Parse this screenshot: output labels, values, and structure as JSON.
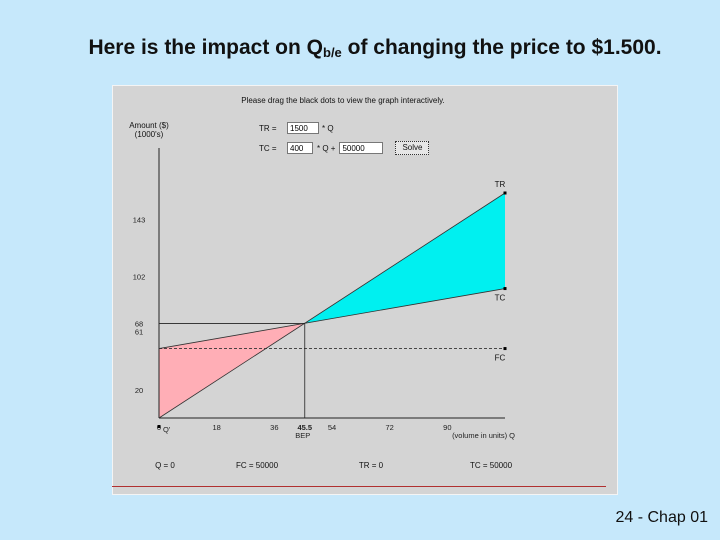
{
  "slide": {
    "title_before": "Here is the impact on Q",
    "title_sub": "b/e",
    "title_after": " of changing the price to $1.500.",
    "footer": "24 - Chap 01"
  },
  "applet": {
    "instruction": "Please drag the black dots to view the graph interactively.",
    "tr_label": "TR =",
    "tr_value": "1500",
    "tr_suffix": "* Q",
    "tc_label": "TC =",
    "tc_value": "400",
    "tc_mid": "* Q +",
    "tc_fixed_value": "50000",
    "solve_label": "Solve",
    "bottom_labels": [
      "Q = 0",
      "FC = 50000",
      "TR = 0",
      "TC = 50000"
    ]
  },
  "colors": {
    "background": "#c6e8fb",
    "panel": "#d4d4d4",
    "profit_fill": "#00f0f0",
    "loss_fill": "#ffaeb6"
  },
  "chart_data": {
    "type": "line",
    "ylabel": "Amount ($)\n(1000's)",
    "xlabel": "(volume in units) Q",
    "xlim": [
      0,
      108
    ],
    "ylim": [
      0,
      180
    ],
    "x_ticks": [
      "0",
      "18",
      "36",
      "45.5",
      "54",
      "72",
      "90"
    ],
    "x_tick_values": [
      0,
      18,
      36,
      45.5,
      54,
      72,
      90
    ],
    "x_tick_sublabel": "BEP",
    "y_ticks": [
      "20",
      "61",
      "68",
      "102",
      "143"
    ],
    "y_tick_values": [
      20,
      61,
      68,
      102,
      143
    ],
    "origin_label": "Q'",
    "series": [
      {
        "name": "TR",
        "x": [
          0,
          108
        ],
        "y": [
          0,
          162
        ]
      },
      {
        "name": "TC",
        "x": [
          0,
          108
        ],
        "y": [
          50,
          93.2
        ]
      },
      {
        "name": "FC",
        "x": [
          0,
          108
        ],
        "y": [
          50,
          50
        ]
      }
    ],
    "break_even": {
      "x": 45.5,
      "y": 68
    }
  }
}
